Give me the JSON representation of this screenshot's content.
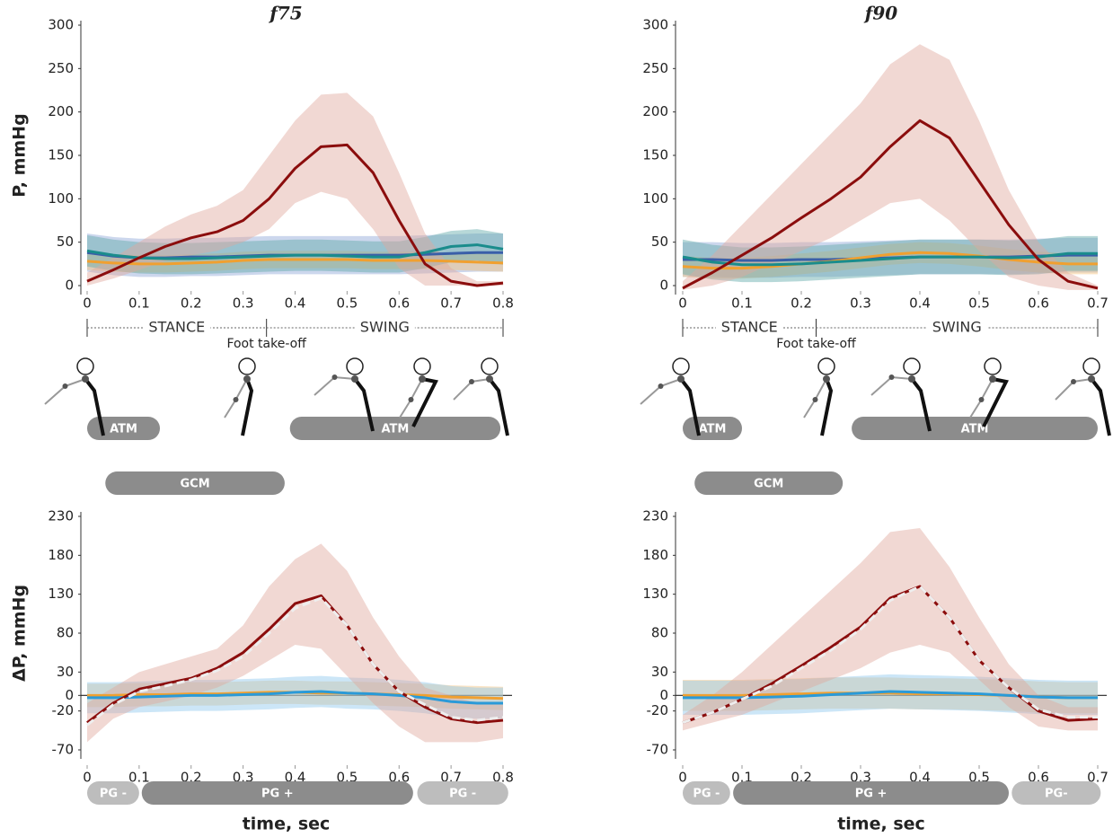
{
  "chart_data": [
    {
      "type": "line",
      "title": "f75",
      "ylabel": "P, mmHg",
      "x": [
        0,
        0.05,
        0.1,
        0.15,
        0.2,
        0.25,
        0.3,
        0.35,
        0.4,
        0.45,
        0.5,
        0.55,
        0.6,
        0.65,
        0.7,
        0.75,
        0.8
      ],
      "xlim": [
        0,
        0.8
      ],
      "xticks": [
        0,
        0.1,
        0.2,
        0.3,
        0.4,
        0.5,
        0.6,
        0.7,
        0.8
      ],
      "ylim": [
        0,
        300
      ],
      "yticks": [
        0,
        50,
        100,
        150,
        200,
        250,
        300
      ],
      "series": [
        {
          "color": "#3a5fa8",
          "band_color": "#8ea6d6",
          "values": [
            38,
            34,
            32,
            32,
            33,
            33,
            34,
            35,
            35,
            35,
            35,
            35,
            35,
            36,
            37,
            38,
            38
          ],
          "lower": [
            16,
            12,
            10,
            10,
            11,
            11,
            12,
            13,
            13,
            13,
            13,
            13,
            13,
            14,
            15,
            16,
            16
          ],
          "upper": [
            60,
            56,
            54,
            54,
            55,
            55,
            56,
            57,
            57,
            57,
            57,
            57,
            57,
            58,
            59,
            60,
            60
          ]
        },
        {
          "color": "#f0a030",
          "band_color": "#f5c27a",
          "values": [
            28,
            26,
            25,
            25,
            26,
            27,
            29,
            30,
            30,
            30,
            30,
            29,
            29,
            29,
            28,
            27,
            26
          ],
          "lower": [
            18,
            16,
            15,
            15,
            16,
            17,
            19,
            20,
            20,
            20,
            20,
            19,
            19,
            19,
            18,
            17,
            16
          ],
          "upper": [
            38,
            36,
            35,
            35,
            36,
            37,
            39,
            40,
            40,
            40,
            40,
            39,
            39,
            39,
            38,
            37,
            36
          ]
        },
        {
          "color": "#1a8c8c",
          "band_color": "#5fa9a9",
          "values": [
            40,
            35,
            32,
            31,
            31,
            32,
            33,
            34,
            35,
            35,
            34,
            33,
            33,
            38,
            45,
            47,
            42
          ],
          "lower": [
            22,
            17,
            14,
            13,
            13,
            14,
            15,
            16,
            17,
            17,
            16,
            15,
            15,
            20,
            27,
            29,
            24
          ],
          "upper": [
            58,
            53,
            50,
            49,
            49,
            50,
            51,
            52,
            53,
            53,
            52,
            51,
            51,
            56,
            63,
            65,
            60
          ]
        },
        {
          "color": "#8b0d0d",
          "band_color": "#e0a89e",
          "values": [
            5,
            18,
            32,
            45,
            55,
            62,
            75,
            100,
            135,
            160,
            162,
            130,
            75,
            25,
            5,
            0,
            3
          ],
          "lower": [
            0,
            8,
            18,
            28,
            35,
            40,
            50,
            65,
            95,
            108,
            100,
            65,
            20,
            0,
            0,
            0,
            0
          ],
          "upper": [
            15,
            32,
            50,
            68,
            82,
            92,
            110,
            150,
            190,
            220,
            222,
            195,
            130,
            60,
            20,
            5,
            5
          ]
        }
      ],
      "phases": {
        "stance": "STANCE",
        "swing": "SWING",
        "takeoff_label": "Foot take-off",
        "takeoff": 0.345
      },
      "bar_rows": [
        [
          {
            "label": "ATM",
            "start": 0,
            "end": 0.14,
            "color": "#8c8c8c"
          },
          {
            "label": "ATM",
            "start": 0.39,
            "end": 0.795,
            "color": "#8c8c8c"
          }
        ],
        [
          {
            "label": "GCM",
            "start": 0.035,
            "end": 0.38,
            "color": "#8c8c8c"
          }
        ]
      ]
    },
    {
      "type": "line",
      "title": "f90",
      "x": [
        0,
        0.05,
        0.1,
        0.15,
        0.2,
        0.25,
        0.3,
        0.35,
        0.4,
        0.45,
        0.5,
        0.55,
        0.6,
        0.65,
        0.7
      ],
      "xlim": [
        0,
        0.7
      ],
      "xticks": [
        0,
        0.1,
        0.2,
        0.3,
        0.4,
        0.5,
        0.6,
        0.7
      ],
      "ylim": [
        0,
        300
      ],
      "yticks": [
        0,
        50,
        100,
        150,
        200,
        250,
        300
      ],
      "series": [
        {
          "color": "#3a5fa8",
          "band_color": "#8ea6d6",
          "values": [
            30,
            30,
            29,
            29,
            30,
            30,
            31,
            32,
            33,
            33,
            33,
            33,
            34,
            35,
            35
          ],
          "lower": [
            10,
            10,
            9,
            9,
            10,
            10,
            11,
            12,
            13,
            13,
            13,
            13,
            14,
            15,
            15
          ],
          "upper": [
            50,
            50,
            49,
            49,
            50,
            50,
            51,
            52,
            53,
            53,
            53,
            53,
            54,
            55,
            55
          ]
        },
        {
          "color": "#f0a030",
          "band_color": "#f5c27a",
          "values": [
            22,
            20,
            20,
            22,
            25,
            28,
            32,
            36,
            38,
            37,
            34,
            30,
            27,
            25,
            25
          ],
          "lower": [
            10,
            8,
            8,
            10,
            13,
            16,
            20,
            24,
            26,
            25,
            22,
            18,
            15,
            13,
            13
          ],
          "upper": [
            34,
            32,
            32,
            34,
            37,
            40,
            44,
            48,
            50,
            49,
            46,
            42,
            39,
            37,
            37
          ]
        },
        {
          "color": "#1a8c8c",
          "band_color": "#5fa9a9",
          "values": [
            33,
            27,
            24,
            24,
            25,
            27,
            29,
            31,
            33,
            33,
            33,
            32,
            33,
            37,
            37
          ],
          "lower": [
            13,
            7,
            4,
            4,
            5,
            7,
            9,
            11,
            13,
            13,
            13,
            12,
            13,
            17,
            17
          ],
          "upper": [
            53,
            47,
            44,
            44,
            45,
            47,
            49,
            51,
            53,
            53,
            53,
            52,
            53,
            57,
            57
          ]
        },
        {
          "color": "#8b0d0d",
          "band_color": "#e0a89e",
          "values": [
            -3,
            15,
            35,
            55,
            78,
            100,
            125,
            160,
            190,
            170,
            120,
            70,
            30,
            5,
            -3
          ],
          "lower": [
            -5,
            0,
            10,
            25,
            40,
            55,
            75,
            95,
            100,
            75,
            40,
            10,
            0,
            -5,
            -5
          ],
          "upper": [
            5,
            35,
            70,
            105,
            140,
            175,
            210,
            255,
            278,
            260,
            190,
            110,
            50,
            15,
            0
          ]
        }
      ],
      "phases": {
        "stance": "STANCE",
        "swing": "SWING",
        "takeoff_label": "Foot take-off",
        "takeoff": 0.225
      },
      "bar_rows": [
        [
          {
            "label": "ATM",
            "start": 0,
            "end": 0.1,
            "color": "#8c8c8c"
          },
          {
            "label": "ATM",
            "start": 0.285,
            "end": 0.7,
            "color": "#8c8c8c"
          }
        ],
        [
          {
            "label": "GCM",
            "start": 0.02,
            "end": 0.27,
            "color": "#8c8c8c"
          }
        ]
      ]
    },
    {
      "type": "line",
      "ylabel": "ΔP, mmHg",
      "xlabel": "time, sec",
      "zero_line": true,
      "x": [
        0,
        0.05,
        0.1,
        0.15,
        0.2,
        0.25,
        0.3,
        0.35,
        0.4,
        0.45,
        0.5,
        0.55,
        0.6,
        0.65,
        0.7,
        0.75,
        0.8
      ],
      "xlim": [
        0,
        0.8
      ],
      "xticks": [
        0,
        0.1,
        0.2,
        0.3,
        0.4,
        0.5,
        0.6,
        0.7,
        0.8
      ],
      "ylim": [
        -70,
        230
      ],
      "yticks": [
        -70,
        -20,
        0,
        30,
        80,
        130,
        180,
        230
      ],
      "series": [
        {
          "color": "#f0a030",
          "band_color": "#f5c27a",
          "values": [
            0,
            0,
            1,
            1,
            2,
            2,
            3,
            4,
            4,
            3,
            3,
            2,
            1,
            0,
            -2,
            -3,
            -4
          ],
          "lower": [
            -15,
            -15,
            -14,
            -14,
            -13,
            -13,
            -12,
            -11,
            -11,
            -12,
            -12,
            -13,
            -14,
            -15,
            -17,
            -18,
            -19
          ],
          "upper": [
            15,
            15,
            16,
            16,
            17,
            17,
            18,
            19,
            19,
            18,
            18,
            17,
            16,
            15,
            13,
            12,
            11
          ]
        },
        {
          "color": "#2a9ad8",
          "band_color": "#8fc8ee",
          "values": [
            -3,
            -3,
            -2,
            -1,
            0,
            0,
            1,
            2,
            4,
            5,
            3,
            2,
            0,
            -3,
            -8,
            -10,
            -10
          ],
          "lower": [
            -23,
            -23,
            -22,
            -21,
            -20,
            -20,
            -19,
            -18,
            -16,
            -15,
            -17,
            -18,
            -20,
            -23,
            -28,
            -30,
            -30
          ],
          "upper": [
            17,
            17,
            18,
            19,
            20,
            20,
            21,
            22,
            24,
            25,
            23,
            22,
            20,
            17,
            12,
            10,
            10
          ]
        },
        {
          "color": "#8b0d0d",
          "band_color": "#e0a89e",
          "values": [
            -35,
            -10,
            8,
            15,
            22,
            35,
            55,
            85,
            118,
            128,
            90,
            40,
            5,
            -15,
            -30,
            -35,
            -32
          ],
          "lower": [
            -60,
            -30,
            -15,
            -8,
            0,
            10,
            25,
            45,
            65,
            60,
            25,
            -10,
            -40,
            -60,
            -60,
            -60,
            -55
          ],
          "upper": [
            -10,
            10,
            30,
            40,
            50,
            60,
            90,
            140,
            175,
            195,
            160,
            100,
            50,
            10,
            0,
            -10,
            -10
          ]
        },
        {
          "color": "#eeeeee",
          "dashed": true,
          "values": [
            -38,
            -12,
            5,
            12,
            20,
            32,
            50,
            80,
            112,
            125,
            90,
            40,
            5,
            -12,
            -28,
            -32,
            -28
          ]
        }
      ],
      "bar_rows": [
        [
          {
            "label": "PG -",
            "start": 0,
            "end": 0.1,
            "color": "#bdbdbd"
          },
          {
            "label": "PG +",
            "start": 0.105,
            "end": 0.627,
            "color": "#8c8c8c"
          },
          {
            "label": "PG -",
            "start": 0.635,
            "end": 0.81,
            "color": "#bdbdbd"
          }
        ]
      ]
    },
    {
      "type": "line",
      "xlabel": "time, sec",
      "zero_line": true,
      "x": [
        0,
        0.05,
        0.1,
        0.15,
        0.2,
        0.25,
        0.3,
        0.35,
        0.4,
        0.45,
        0.5,
        0.55,
        0.6,
        0.65,
        0.7
      ],
      "xlim": [
        0,
        0.7
      ],
      "xticks": [
        0,
        0.1,
        0.2,
        0.3,
        0.4,
        0.5,
        0.6,
        0.7
      ],
      "ylim": [
        -70,
        230
      ],
      "yticks": [
        -70,
        -20,
        0,
        30,
        80,
        130,
        180,
        230
      ],
      "series": [
        {
          "color": "#f0a030",
          "band_color": "#f5c27a",
          "values": [
            0,
            0,
            0,
            1,
            2,
            3,
            3,
            3,
            2,
            2,
            1,
            0,
            -2,
            -3,
            -3
          ],
          "lower": [
            -20,
            -20,
            -20,
            -19,
            -18,
            -17,
            -17,
            -17,
            -18,
            -18,
            -19,
            -20,
            -22,
            -23,
            -23
          ],
          "upper": [
            20,
            20,
            20,
            21,
            22,
            23,
            23,
            23,
            22,
            22,
            21,
            20,
            18,
            17,
            17
          ]
        },
        {
          "color": "#2a9ad8",
          "band_color": "#8fc8ee",
          "values": [
            -3,
            -3,
            -3,
            -2,
            -1,
            1,
            3,
            5,
            4,
            3,
            2,
            0,
            -2,
            -3,
            -3
          ],
          "lower": [
            -25,
            -25,
            -25,
            -24,
            -23,
            -21,
            -19,
            -17,
            -18,
            -19,
            -20,
            -22,
            -24,
            -25,
            -25
          ],
          "upper": [
            19,
            19,
            19,
            20,
            21,
            23,
            25,
            27,
            26,
            25,
            24,
            22,
            20,
            19,
            19
          ]
        },
        {
          "color": "#8b0d0d",
          "band_color": "#e0a89e",
          "values": [
            -35,
            -22,
            -5,
            15,
            38,
            62,
            88,
            125,
            140,
            100,
            45,
            10,
            -20,
            -32,
            -30
          ],
          "lower": [
            -45,
            -35,
            -25,
            -10,
            5,
            20,
            35,
            55,
            65,
            55,
            20,
            -15,
            -40,
            -45,
            -45
          ],
          "upper": [
            -25,
            0,
            30,
            65,
            100,
            135,
            170,
            210,
            215,
            165,
            100,
            40,
            0,
            -15,
            -15
          ]
        },
        {
          "color": "#eeeeee",
          "dashed": true,
          "values": [
            -35,
            -22,
            -5,
            12,
            35,
            58,
            85,
            122,
            140,
            100,
            45,
            10,
            -18,
            -28,
            -28
          ]
        }
      ],
      "bar_rows": [
        [
          {
            "label": "PG -",
            "start": 0,
            "end": 0.08,
            "color": "#bdbdbd"
          },
          {
            "label": "PG +",
            "start": 0.085,
            "end": 0.55,
            "color": "#8c8c8c"
          },
          {
            "label": "PG-",
            "start": 0.555,
            "end": 0.705,
            "color": "#bdbdbd"
          }
        ]
      ]
    }
  ]
}
